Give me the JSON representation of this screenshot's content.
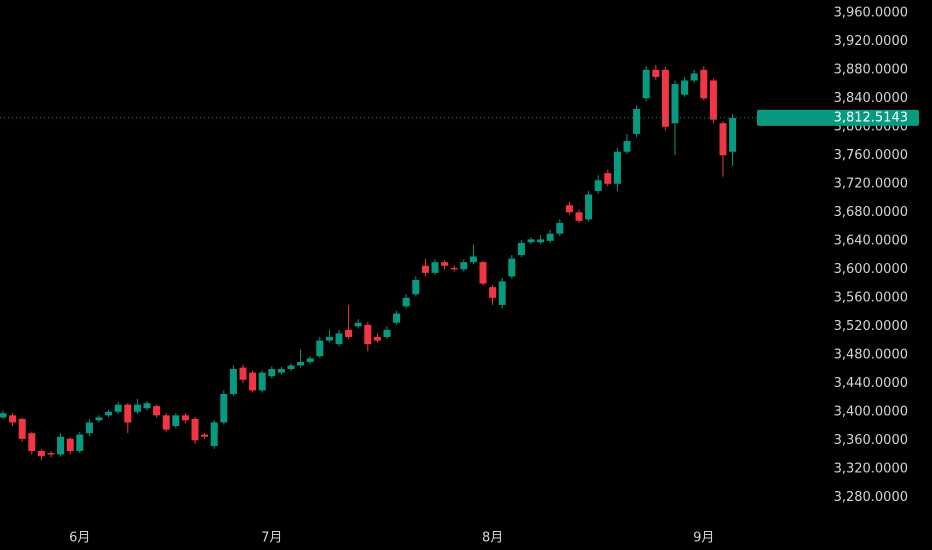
{
  "chart_data": {
    "type": "candlestick",
    "categories": [
      null,
      null,
      null,
      null,
      null,
      null,
      null,
      null,
      "6月",
      null,
      null,
      null,
      null,
      null,
      null,
      null,
      null,
      null,
      null,
      null,
      null,
      null,
      null,
      null,
      null,
      null,
      null,
      null,
      "7月",
      null,
      null,
      null,
      null,
      null,
      null,
      null,
      null,
      null,
      null,
      null,
      null,
      null,
      null,
      null,
      null,
      null,
      null,
      null,
      null,
      null,
      null,
      "8月",
      null,
      null,
      null,
      null,
      null,
      null,
      null,
      null,
      null,
      null,
      null,
      null,
      null,
      null,
      null,
      null,
      null,
      null,
      null,
      null,
      null,
      "9月",
      null,
      null,
      null
    ],
    "open": [
      3392,
      3395,
      3390,
      3370,
      3345,
      3342,
      3340,
      3362,
      3345,
      3370,
      3388,
      3395,
      3400,
      3410,
      3400,
      3405,
      3408,
      3395,
      3380,
      3395,
      3390,
      3368,
      3352,
      3385,
      3425,
      3462,
      3455,
      3430,
      3450,
      3455,
      3460,
      3465,
      3470,
      3478,
      3500,
      3495,
      3515,
      3520,
      3522,
      3505,
      3505,
      3525,
      3548,
      3565,
      3605,
      3595,
      3610,
      3602,
      3600,
      3610,
      3610,
      3575,
      3550,
      3590,
      3620,
      3638,
      3638,
      3640,
      3650,
      3690,
      3680,
      3670,
      3710,
      3735,
      3720,
      3765,
      3790,
      3840,
      3880,
      3880,
      3805,
      3845,
      3865,
      3880,
      3865,
      3805,
      3765
    ],
    "high": [
      3402,
      3398,
      3392,
      3372,
      3348,
      3345,
      3370,
      3364,
      3372,
      3390,
      3395,
      3403,
      3414,
      3412,
      3418,
      3415,
      3410,
      3398,
      3398,
      3398,
      3393,
      3370,
      3388,
      3430,
      3465,
      3466,
      3458,
      3458,
      3464,
      3463,
      3468,
      3487,
      3478,
      3505,
      3515,
      3515,
      3550,
      3530,
      3526,
      3510,
      3520,
      3542,
      3565,
      3590,
      3615,
      3614,
      3613,
      3605,
      3614,
      3635,
      3612,
      3578,
      3588,
      3620,
      3641,
      3645,
      3648,
      3655,
      3670,
      3695,
      3684,
      3710,
      3732,
      3740,
      3770,
      3790,
      3830,
      3885,
      3887,
      3884,
      3865,
      3870,
      3880,
      3885,
      3868,
      3808,
      3818
    ],
    "low": [
      3390,
      3380,
      3358,
      3340,
      3332,
      3336,
      3337,
      3340,
      3342,
      3366,
      3385,
      3392,
      3397,
      3370,
      3397,
      3402,
      3392,
      3372,
      3377,
      3384,
      3355,
      3362,
      3348,
      3382,
      3422,
      3440,
      3427,
      3427,
      3447,
      3452,
      3457,
      3462,
      3467,
      3475,
      3497,
      3492,
      3502,
      3517,
      3485,
      3497,
      3502,
      3522,
      3545,
      3562,
      3590,
      3592,
      3600,
      3597,
      3597,
      3607,
      3577,
      3550,
      3545,
      3587,
      3617,
      3635,
      3635,
      3637,
      3647,
      3677,
      3665,
      3667,
      3706,
      3717,
      3710,
      3762,
      3785,
      3836,
      3866,
      3795,
      3760,
      3842,
      3862,
      3837,
      3805,
      3730,
      3745
    ],
    "close": [
      3398,
      3385,
      3362,
      3345,
      3338,
      3340,
      3365,
      3345,
      3368,
      3385,
      3392,
      3400,
      3410,
      3385,
      3410,
      3412,
      3395,
      3375,
      3395,
      3388,
      3360,
      3365,
      3385,
      3425,
      3460,
      3445,
      3430,
      3455,
      3460,
      3460,
      3465,
      3470,
      3475,
      3500,
      3505,
      3510,
      3505,
      3525,
      3495,
      3500,
      3515,
      3538,
      3560,
      3585,
      3595,
      3610,
      3605,
      3600,
      3610,
      3618,
      3580,
      3560,
      3583,
      3615,
      3637,
      3642,
      3642,
      3650,
      3665,
      3680,
      3668,
      3705,
      3725,
      3720,
      3765,
      3780,
      3825,
      3880,
      3870,
      3800,
      3860,
      3865,
      3875,
      3840,
      3810,
      3760,
      3812.5143
    ],
    "up_color": "#089981",
    "down_color": "#f23645",
    "last_price": {
      "value": 3812.5143,
      "label": "3,812.5143"
    },
    "ylim": [
      3206,
      3978
    ],
    "yticks": [
      {
        "value": 3280,
        "label": "3,280.0000"
      },
      {
        "value": 3320,
        "label": "3,320.0000"
      },
      {
        "value": 3360,
        "label": "3,360.0000"
      },
      {
        "value": 3400,
        "label": "3,400.0000"
      },
      {
        "value": 3440,
        "label": "3,440.0000"
      },
      {
        "value": 3480,
        "label": "3,480.0000"
      },
      {
        "value": 3520,
        "label": "3,520.0000"
      },
      {
        "value": 3560,
        "label": "3,560.0000"
      },
      {
        "value": 3600,
        "label": "3,600.0000"
      },
      {
        "value": 3640,
        "label": "3,640.0000"
      },
      {
        "value": 3680,
        "label": "3,680.0000"
      },
      {
        "value": 3720,
        "label": "3,720.0000"
      },
      {
        "value": 3760,
        "label": "3,760.0000"
      },
      {
        "value": 3800,
        "label": "3,800.0000"
      },
      {
        "value": 3840,
        "label": "3,840.0000"
      },
      {
        "value": 3880,
        "label": "3,880.0000"
      },
      {
        "value": 3920,
        "label": "3,920.0000"
      },
      {
        "value": 3960,
        "label": "3,960.0000"
      }
    ]
  }
}
